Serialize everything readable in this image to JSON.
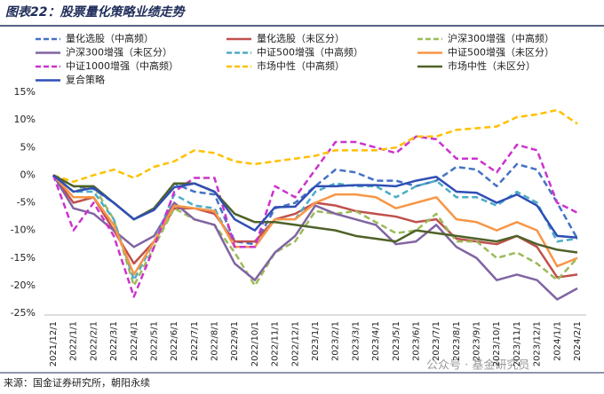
{
  "chart_data": {
    "type": "line",
    "title": "图表22：股票量化策略业绩走势",
    "source": "来源：国金证券研究所，朝阳永续",
    "watermark": "公众号 · 基金研究员",
    "categories": [
      "2021/12/1",
      "2022/1/1",
      "2022/2/1",
      "2022/3/1",
      "2022/4/1",
      "2022/5/1",
      "2022/6/1",
      "2022/7/1",
      "2022/8/1",
      "2022/9/1",
      "2022/10/1",
      "2022/11/1",
      "2022/12/1",
      "2023/1/1",
      "2023/2/1",
      "2023/3/1",
      "2023/4/1",
      "2023/5/1",
      "2023/6/1",
      "2023/7/1",
      "2023/8/1",
      "2023/9/1",
      "2023/10/1",
      "2023/11/1",
      "2023/12/1",
      "2024/1/1",
      "2024/2/1"
    ],
    "ylim": [
      -25,
      15
    ],
    "yticks": [
      {
        "value": 15,
        "label": "15%"
      },
      {
        "value": 10,
        "label": "10%"
      },
      {
        "value": 5,
        "label": "5%"
      },
      {
        "value": 0,
        "label": "0%"
      },
      {
        "value": -5,
        "label": "-5%"
      },
      {
        "value": -10,
        "label": "-10%"
      },
      {
        "value": -15,
        "label": "-15%"
      },
      {
        "value": -20,
        "label": "-20%"
      },
      {
        "value": -25,
        "label": "-25%"
      }
    ],
    "legend": "top",
    "series": [
      {
        "name": "量化选股（中高频）",
        "color": "#4472c4",
        "style": "dashed",
        "values": [
          0,
          -2,
          -2.5,
          -5,
          -8,
          -6,
          -1.5,
          -3,
          -3.5,
          -12,
          -12.5,
          -6,
          -5,
          -2,
          1,
          0.5,
          -1,
          -1,
          -2,
          -1,
          1.5,
          1,
          -2,
          2,
          1,
          -5,
          -11.5
        ]
      },
      {
        "name": "量化选股（未区分）",
        "color": "#c0504d",
        "style": "solid",
        "values": [
          0,
          -5,
          -4,
          -10,
          -16,
          -12,
          -6,
          -6,
          -7,
          -12,
          -12,
          -8,
          -7,
          -5,
          -5.5,
          -6.5,
          -7,
          -7.5,
          -8.5,
          -8,
          -11.5,
          -12,
          -12.5,
          -11,
          -13,
          -18.5,
          -18
        ]
      },
      {
        "name": "沪深300增强（中高频）",
        "color": "#9bbb59",
        "style": "dashed",
        "values": [
          0,
          -3,
          -2,
          -8,
          -20,
          -13,
          -6,
          -8,
          -9,
          -14,
          -20,
          -14,
          -12,
          -6.5,
          -7,
          -6.5,
          -8.5,
          -10.5,
          -10,
          -7,
          -12,
          -12,
          -15,
          -14,
          -16,
          -19,
          -15
        ]
      },
      {
        "name": "沪深300增强（未区分）",
        "color": "#8064a2",
        "style": "solid",
        "values": [
          0,
          -6,
          -7,
          -10,
          -13,
          -11,
          -5,
          -8,
          -9,
          -16,
          -19,
          -14,
          -11,
          -5.5,
          -7,
          -8,
          -9,
          -12.5,
          -12,
          -9,
          -13,
          -15,
          -19,
          -18,
          -19,
          -22.5,
          -20.5
        ]
      },
      {
        "name": "中证500增强（中高频）",
        "color": "#4bacc6",
        "style": "dashed",
        "values": [
          0,
          -3,
          -3,
          -8,
          -19,
          -12,
          -3.5,
          -5.5,
          -6,
          -13,
          -13,
          -8,
          -8,
          -3,
          -1.5,
          -2,
          -2,
          -4,
          -2,
          -1,
          -4,
          -4,
          -5.5,
          -3,
          -5,
          -12,
          -11.5
        ]
      },
      {
        "name": "中证500增强（未区分）",
        "color": "#f79646",
        "style": "solid",
        "values": [
          0,
          -4,
          -4,
          -9,
          -18,
          -12,
          -5.5,
          -6,
          -6.5,
          -13,
          -13,
          -8,
          -8,
          -5,
          -3.5,
          -3.5,
          -4,
          -6,
          -5,
          -4,
          -8,
          -8.5,
          -10,
          -8.5,
          -10,
          -16.5,
          -15
        ]
      },
      {
        "name": "中证1000增强（中高频）",
        "color": "#cc33cc",
        "style": "dashed",
        "values": [
          0,
          -10,
          -5,
          -11,
          -22,
          -13,
          -3,
          -0.5,
          -0.5,
          -13,
          -13,
          -2,
          -4,
          1,
          6,
          6,
          5,
          4,
          7,
          6.5,
          3,
          3,
          0.5,
          5.5,
          4.5,
          -5,
          -6.8
        ]
      },
      {
        "name": "市场中性（中高频）",
        "color": "#ffc000",
        "style": "dashed",
        "values": [
          0,
          -1.2,
          0,
          1,
          -0.5,
          1.5,
          2.5,
          4.5,
          4,
          2.5,
          2,
          2.5,
          3,
          3.5,
          4.5,
          4.5,
          4.5,
          5,
          7,
          7,
          8.2,
          8.5,
          8.8,
          10.5,
          11,
          11.8,
          9.3
        ]
      },
      {
        "name": "市场中性（未区分）",
        "color": "#4f6228",
        "style": "solid",
        "values": [
          0,
          -2,
          -2,
          -5,
          -8,
          -6,
          -1.5,
          -1.5,
          -3,
          -7,
          -8.5,
          -8.5,
          -9,
          -9.5,
          -10,
          -11,
          -11.5,
          -12,
          -10,
          -10.5,
          -11,
          -11.5,
          -12,
          -11,
          -12.5,
          -13.5,
          -14
        ]
      },
      {
        "name": "复合策略",
        "color": "#2f4fb5",
        "style": "solid",
        "values": [
          0,
          -3,
          -2.3,
          -5,
          -8,
          -6.3,
          -2.2,
          -1.5,
          -3,
          -8,
          -10,
          -5.8,
          -5.7,
          -2,
          -2,
          -1.8,
          -1.8,
          -2,
          -1,
          -0.3,
          -3,
          -3.2,
          -5,
          -3.5,
          -5.5,
          -11,
          -11.3
        ]
      }
    ]
  }
}
